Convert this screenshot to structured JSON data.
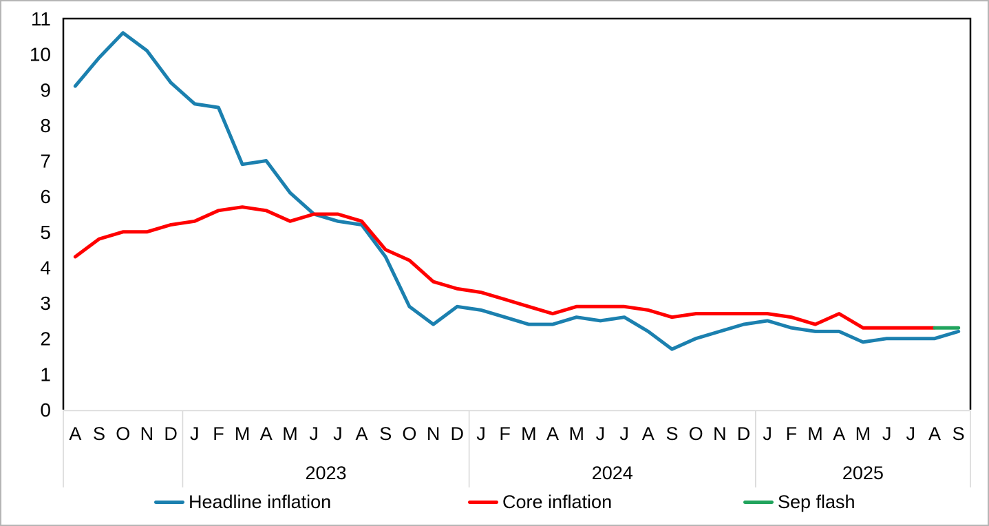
{
  "chart_data": {
    "type": "line",
    "title": "",
    "x_axis": {
      "months": [
        "A",
        "S",
        "O",
        "N",
        "D",
        "J",
        "F",
        "M",
        "A",
        "M",
        "J",
        "J",
        "A",
        "S",
        "O",
        "N",
        "D",
        "J",
        "F",
        "M",
        "A",
        "M",
        "J",
        "J",
        "A",
        "S",
        "O",
        "N",
        "D",
        "J",
        "F",
        "M",
        "A",
        "M",
        "J",
        "J",
        "A",
        "S"
      ],
      "year_groups": [
        {
          "label": "",
          "count": 5
        },
        {
          "label": "2023",
          "count": 12
        },
        {
          "label": "2024",
          "count": 12
        },
        {
          "label": "2025",
          "count": 9
        }
      ]
    },
    "y_axis": {
      "min": 0,
      "max": 11,
      "tick_step": 1,
      "tick_labels": [
        "0",
        "1",
        "2",
        "3",
        "4",
        "5",
        "6",
        "7",
        "8",
        "9",
        "10",
        "11"
      ]
    },
    "grid": "off",
    "legend_position": "bottom",
    "series": [
      {
        "name": "Headline inflation",
        "color": "#1B80AF",
        "values": [
          9.1,
          9.9,
          10.6,
          10.1,
          9.2,
          8.6,
          8.5,
          6.9,
          7.0,
          6.1,
          5.5,
          5.3,
          5.2,
          4.3,
          2.9,
          2.4,
          2.9,
          2.8,
          2.6,
          2.4,
          2.4,
          2.6,
          2.5,
          2.6,
          2.2,
          1.7,
          2.0,
          2.2,
          2.4,
          2.5,
          2.3,
          2.2,
          2.2,
          1.9,
          2.0,
          2.0,
          2.0,
          2.2
        ]
      },
      {
        "name": "Core inflation",
        "color": "#FF0000",
        "values": [
          4.3,
          4.8,
          5.0,
          5.0,
          5.2,
          5.3,
          5.6,
          5.7,
          5.6,
          5.3,
          5.5,
          5.5,
          5.3,
          4.5,
          4.2,
          3.6,
          3.4,
          3.3,
          3.1,
          2.9,
          2.7,
          2.9,
          2.9,
          2.9,
          2.8,
          2.6,
          2.7,
          2.7,
          2.7,
          2.7,
          2.6,
          2.4,
          2.7,
          2.3,
          2.3,
          2.3,
          2.3,
          null
        ]
      },
      {
        "name": "Sep flash",
        "color": "#21A45D",
        "values": [
          null,
          null,
          null,
          null,
          null,
          null,
          null,
          null,
          null,
          null,
          null,
          null,
          null,
          null,
          null,
          null,
          null,
          null,
          null,
          null,
          null,
          null,
          null,
          null,
          null,
          null,
          null,
          null,
          null,
          null,
          null,
          null,
          null,
          null,
          null,
          null,
          2.3,
          2.3
        ]
      }
    ]
  }
}
